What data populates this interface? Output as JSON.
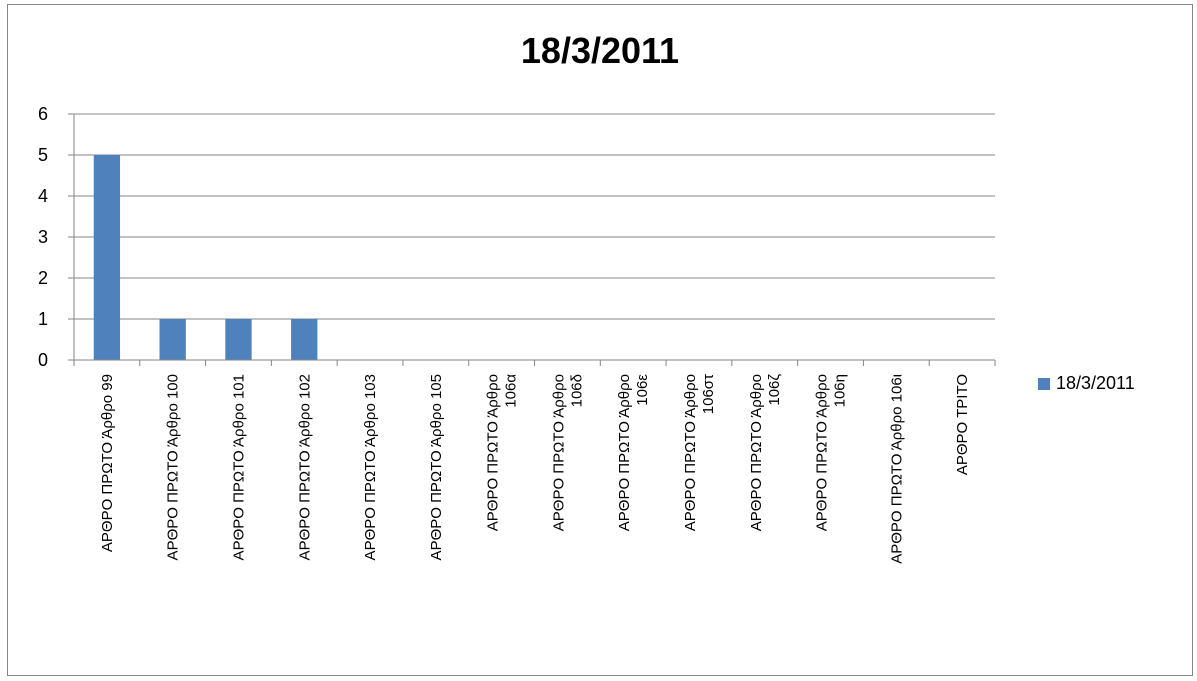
{
  "chart_data": {
    "type": "bar",
    "title": "18/3/2011",
    "categories": [
      "ΑΡΘΡΟ ΠΡΩΤΟ Άρθρο 99",
      "ΑΡΘΡΟ ΠΡΩΤΟ Άρθρο 100",
      "ΑΡΘΡΟ ΠΡΩΤΟ Άρθρο 101",
      "ΑΡΘΡΟ ΠΡΩΤΟ Άρθρο 102",
      "ΑΡΘΡΟ ΠΡΩΤΟ Άρθρο 103",
      "ΑΡΘΡΟ ΠΡΩΤΟ Άρθρο 105",
      "ΑΡΘΡΟ ΠΡΩΤΟ Άρθρο 106α",
      "ΑΡΘΡΟ ΠΡΩΤΟ Άρθρο 106δ",
      "ΑΡΘΡΟ ΠΡΩΤΟ Άρθρο 106ε",
      "ΑΡΘΡΟ ΠΡΩΤΟ Άρθρο 106στ",
      "ΑΡΘΡΟ ΠΡΩΤΟ Άρθρο 106ζ",
      "ΑΡΘΡΟ ΠΡΩΤΟ Άρθρο 106η",
      "ΑΡΘΡΟ ΠΡΩΤΟ Άρθρο 106ι",
      "ΑΡΘΡΟ ΤΡΙΤΟ"
    ],
    "category_lines": [
      [
        "ΑΡΘΡΟ ΠΡΩΤΟ  Άρθρο 99"
      ],
      [
        "ΑΡΘΡΟ ΠΡΩΤΟ  Άρθρο 100"
      ],
      [
        "ΑΡΘΡΟ ΠΡΩΤΟ  Άρθρο 101"
      ],
      [
        "ΑΡΘΡΟ ΠΡΩΤΟ  Άρθρο 102"
      ],
      [
        "ΑΡΘΡΟ ΠΡΩΤΟ  Άρθρο 103"
      ],
      [
        "ΑΡΘΡΟ ΠΡΩΤΟ  Άρθρο 105"
      ],
      [
        "ΑΡΘΡΟ ΠΡΩΤΟ  Άρθρο",
        "106α"
      ],
      [
        "ΑΡΘΡΟ ΠΡΩΤΟ  Άρθρο",
        "106δ"
      ],
      [
        "ΑΡΘΡΟ ΠΡΩΤΟ  Άρθρο",
        "106ε"
      ],
      [
        "ΑΡΘΡΟ ΠΡΩΤΟ  Άρθρο",
        "106στ"
      ],
      [
        "ΑΡΘΡΟ ΠΡΩΤΟ  Άρθρο",
        "106ζ"
      ],
      [
        "ΑΡΘΡΟ ΠΡΩΤΟ  Άρθρο",
        "106η"
      ],
      [
        "ΑΡΘΡΟ ΠΡΩΤΟ  Άρθρο 106ι"
      ],
      [
        "ΑΡΘΡΟ ΤΡΙΤΟ"
      ]
    ],
    "series": [
      {
        "name": "18/3/2011",
        "values": [
          5,
          1,
          1,
          1,
          0,
          0,
          0,
          0,
          0,
          0,
          0,
          0,
          0,
          0
        ]
      }
    ],
    "ylim": [
      0,
      6
    ],
    "yticks": [
      0,
      1,
      2,
      3,
      4,
      5,
      6
    ],
    "grid": true,
    "legend_position": "right",
    "colors": {
      "bar": "#4F81BD",
      "grid": "#868686",
      "axis": "#868686"
    }
  }
}
